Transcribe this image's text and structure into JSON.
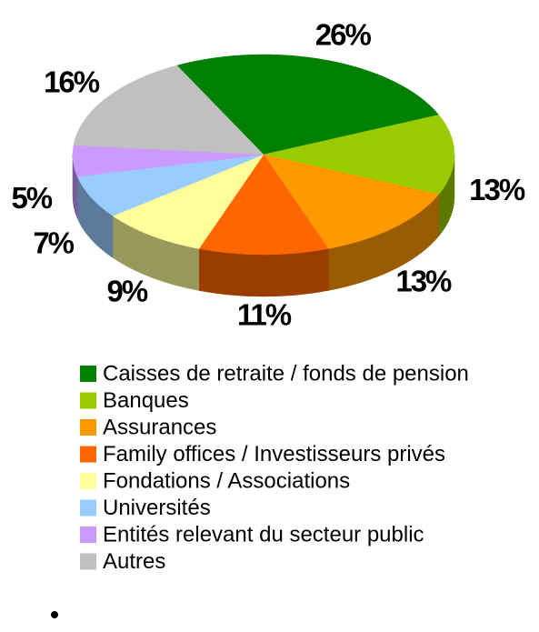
{
  "chart_data": {
    "type": "pie3d",
    "categories": [
      "Caisses de retraite / fonds de pension",
      "Banques",
      "Assurances",
      "Family offices / Investisseurs privés",
      "Fondations / Associations",
      "Universités",
      "Entités relevant du secteur public",
      "Autres"
    ],
    "values": [
      26,
      13,
      13,
      11,
      9,
      7,
      5,
      16
    ],
    "value_labels": [
      "26%",
      "13%",
      "13%",
      "11%",
      "9%",
      "7%",
      "5%",
      "16%"
    ],
    "colors": [
      "#008000",
      "#99cc00",
      "#ff9900",
      "#ff6600",
      "#ffff99",
      "#99ccff",
      "#cc99ff",
      "#c0c0c0"
    ]
  }
}
